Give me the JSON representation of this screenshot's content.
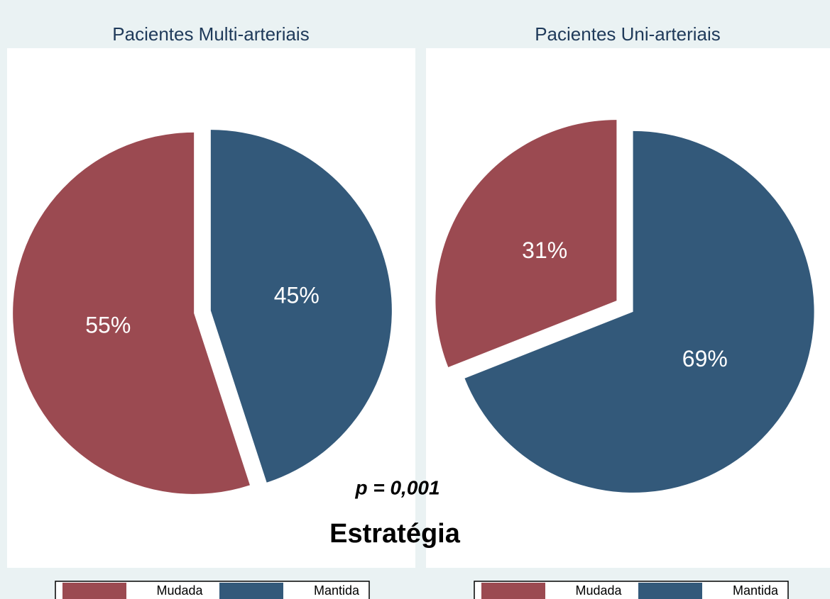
{
  "chart_data": [
    {
      "type": "pie",
      "title": "Pacientes Multi-arteriais",
      "categories": [
        "Mudada",
        "Mantida"
      ],
      "values": [
        55,
        45
      ],
      "value_labels": [
        "55%",
        "45%"
      ],
      "colors": [
        "#9b4a51",
        "#33597a"
      ],
      "legend": "bottom"
    },
    {
      "type": "pie",
      "title": "Pacientes Uni-arteriais",
      "categories": [
        "Mudada",
        "Mantida"
      ],
      "values": [
        31,
        69
      ],
      "value_labels": [
        "31%",
        "69%"
      ],
      "colors": [
        "#9b4a51",
        "#33597a"
      ],
      "legend": "bottom"
    }
  ],
  "annotation": "p = 0,001",
  "caption": "Estratégia"
}
